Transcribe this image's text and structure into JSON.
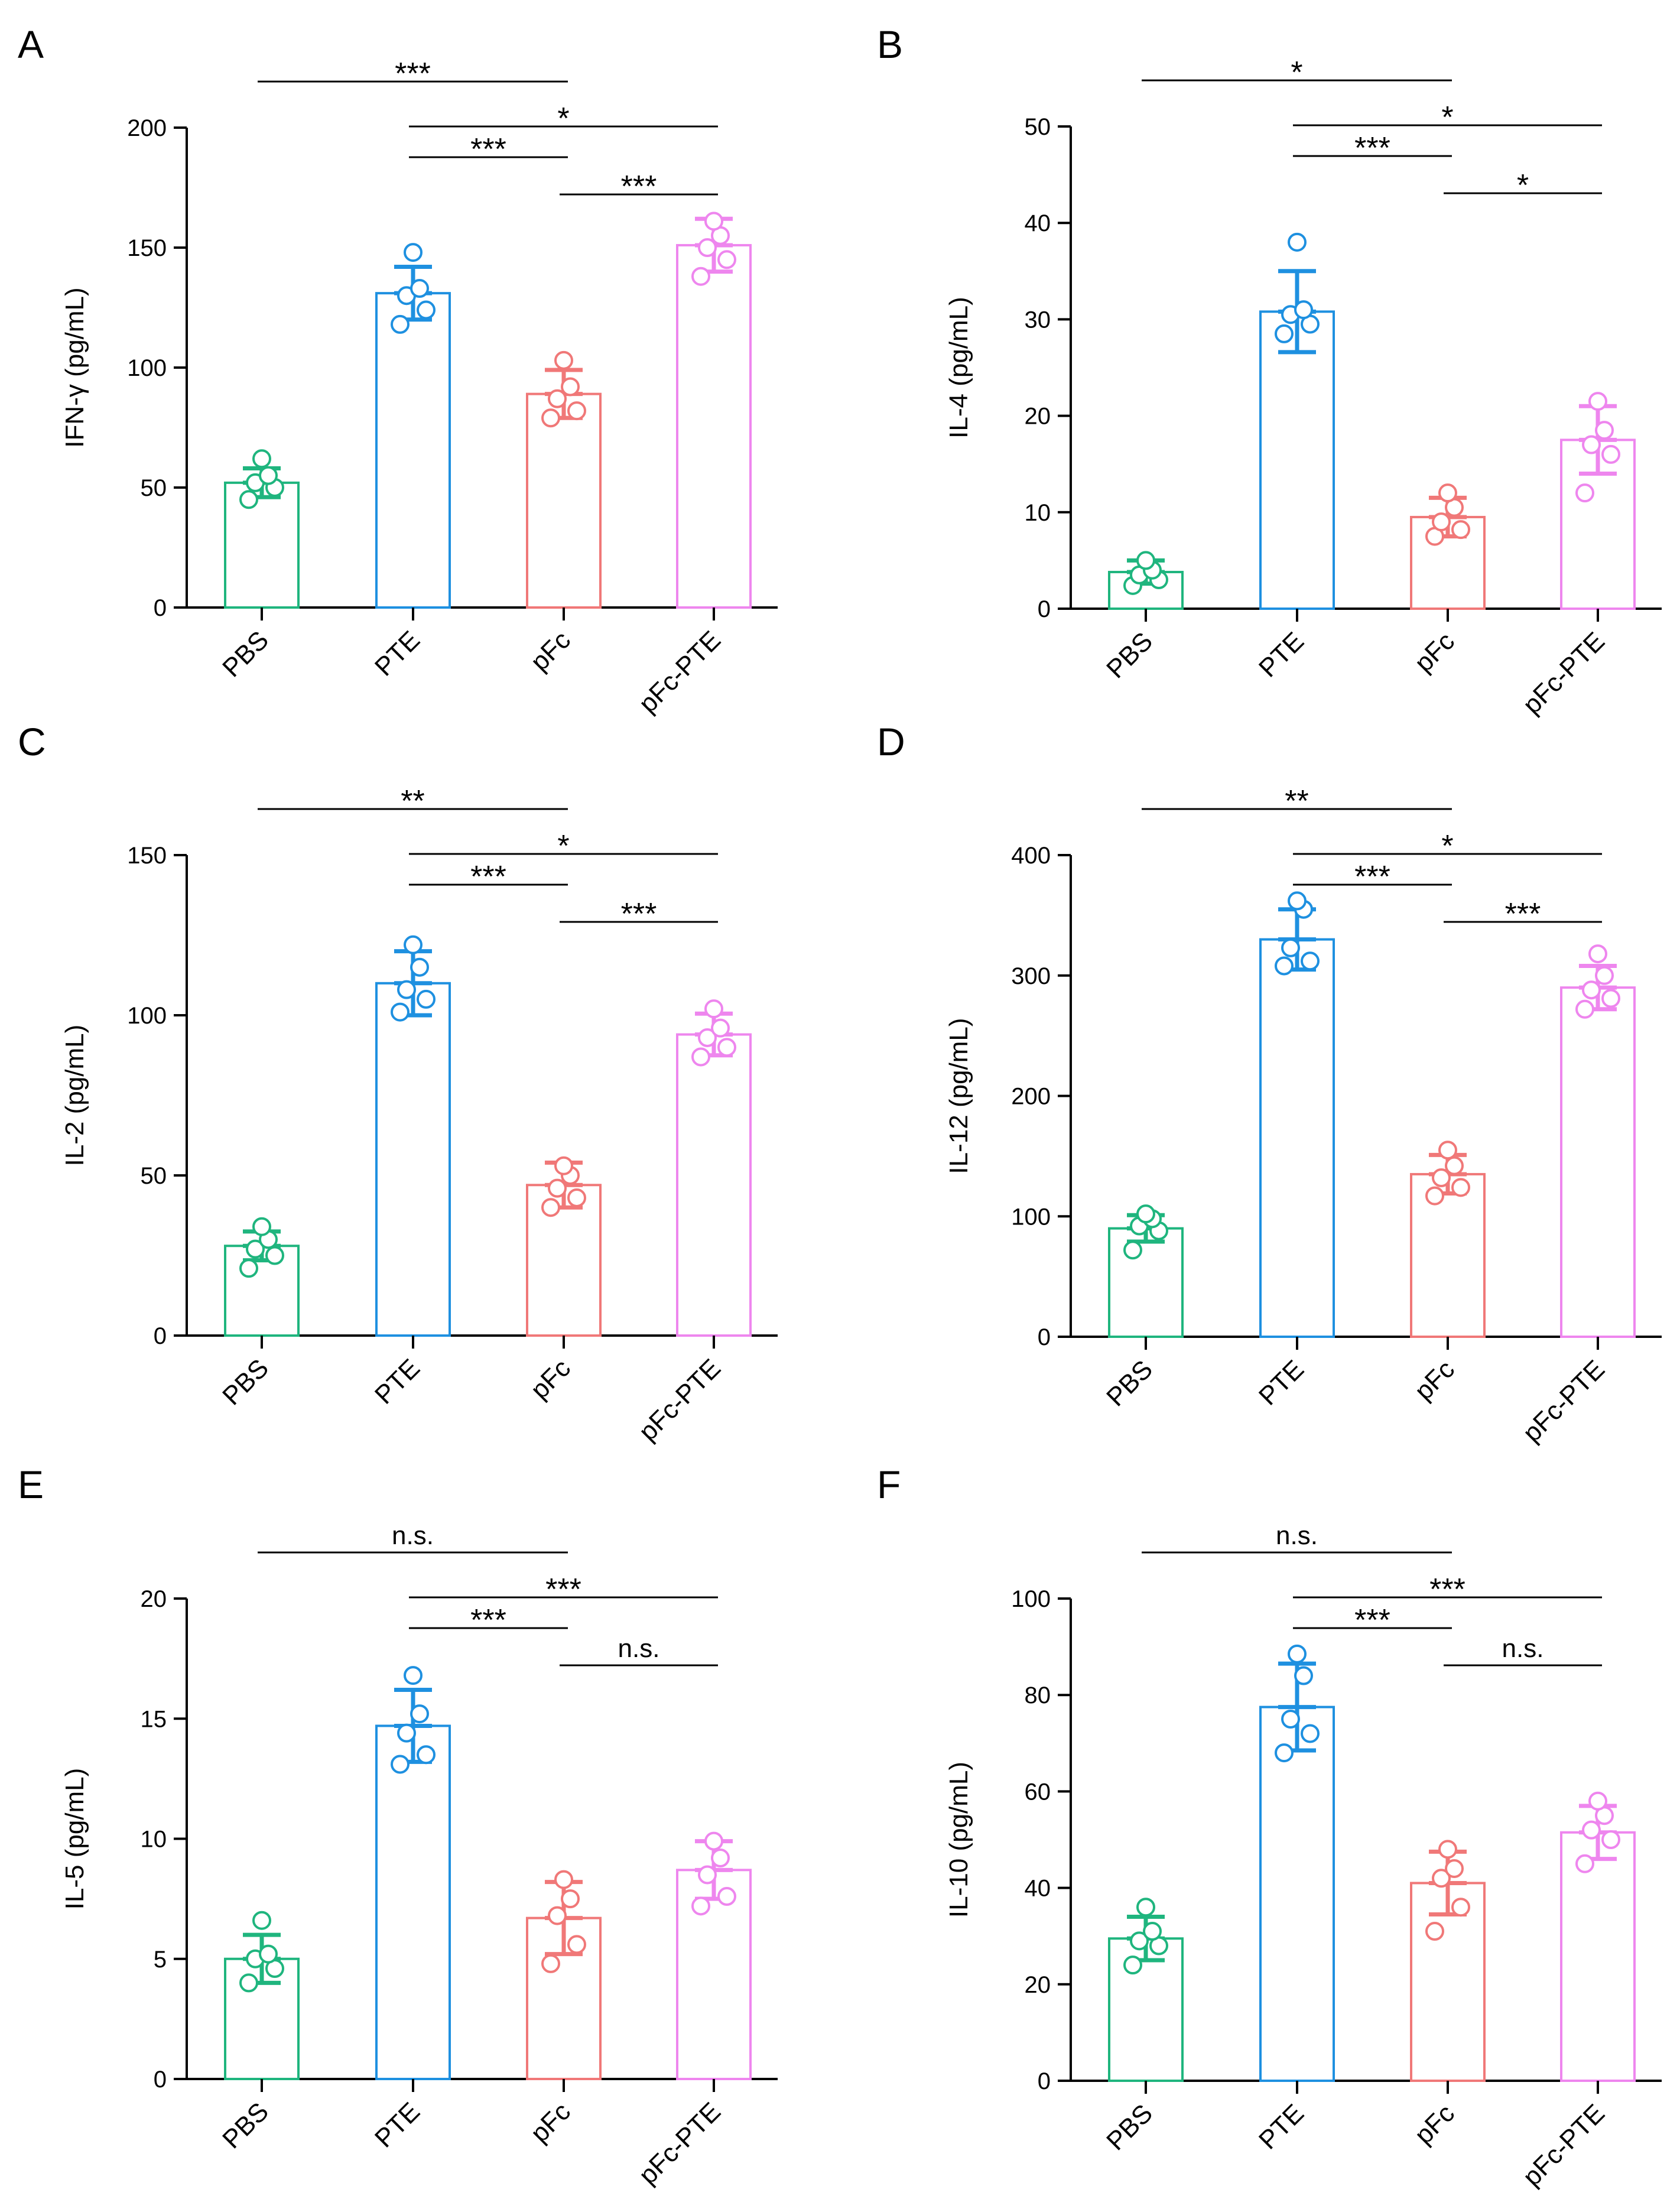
{
  "chart_data": [
    {
      "panel": "A",
      "type": "bar",
      "ylabel": "IFN-γ (pg/mL)",
      "ylim": [
        0,
        200
      ],
      "yticks": [
        0,
        50,
        100,
        150,
        200
      ],
      "categories": [
        "PBS",
        "PTE",
        "pFc",
        "pFc-PTE"
      ],
      "values": [
        52,
        131,
        89,
        151
      ],
      "errors": [
        6,
        11,
        10,
        11
      ],
      "points": [
        [
          45,
          50,
          52,
          55,
          62
        ],
        [
          118,
          124,
          130,
          133,
          148
        ],
        [
          79,
          82,
          87,
          92,
          103
        ],
        [
          138,
          145,
          150,
          155,
          161
        ]
      ],
      "significance": [
        {
          "from": 0,
          "to": 2,
          "label": "***"
        },
        {
          "from": 1,
          "to": 3,
          "label": "*"
        },
        {
          "from": 1,
          "to": 2,
          "label": "***"
        },
        {
          "from": 2,
          "to": 3,
          "label": "***"
        }
      ]
    },
    {
      "panel": "B",
      "type": "bar",
      "ylabel": "IL-4 (pg/mL)",
      "ylim": [
        0,
        50
      ],
      "yticks": [
        0,
        10,
        20,
        30,
        40,
        50
      ],
      "categories": [
        "PBS",
        "PTE",
        "pFc",
        "pFc-PTE"
      ],
      "values": [
        3.8,
        30.8,
        9.5,
        17.5
      ],
      "errors": [
        1.2,
        4.2,
        2.0,
        3.5
      ],
      "points": [
        [
          2.4,
          3.0,
          3.5,
          4.0,
          5.0
        ],
        [
          28.5,
          29.5,
          30.5,
          31.0,
          38.0
        ],
        [
          7.5,
          8.2,
          9.0,
          10.5,
          12.0
        ],
        [
          12.0,
          16.0,
          17.0,
          18.5,
          21.5
        ]
      ],
      "significance": [
        {
          "from": 0,
          "to": 2,
          "label": "*"
        },
        {
          "from": 1,
          "to": 3,
          "label": "*"
        },
        {
          "from": 1,
          "to": 2,
          "label": "***"
        },
        {
          "from": 2,
          "to": 3,
          "label": "*"
        }
      ]
    },
    {
      "panel": "C",
      "type": "bar",
      "ylabel": "IL-2 (pg/mL)",
      "ylim": [
        0,
        150
      ],
      "yticks": [
        0,
        50,
        100,
        150
      ],
      "categories": [
        "PBS",
        "PTE",
        "pFc",
        "pFc-PTE"
      ],
      "values": [
        28,
        110,
        47,
        94
      ],
      "errors": [
        4.5,
        10,
        7,
        6.5
      ],
      "points": [
        [
          21,
          25,
          27,
          30,
          34
        ],
        [
          101,
          105,
          108,
          115,
          122
        ],
        [
          40,
          43,
          46,
          50,
          53
        ],
        [
          87,
          90,
          93,
          96,
          102
        ]
      ],
      "significance": [
        {
          "from": 0,
          "to": 2,
          "label": "**"
        },
        {
          "from": 1,
          "to": 3,
          "label": "*"
        },
        {
          "from": 1,
          "to": 2,
          "label": "***"
        },
        {
          "from": 2,
          "to": 3,
          "label": "***"
        }
      ]
    },
    {
      "panel": "D",
      "type": "bar",
      "ylabel": "IL-12 (pg/mL)",
      "ylim": [
        0,
        400
      ],
      "yticks": [
        0,
        100,
        200,
        300,
        400
      ],
      "categories": [
        "PBS",
        "PTE",
        "pFc",
        "pFc-PTE"
      ],
      "values": [
        90,
        330,
        135,
        290
      ],
      "errors": [
        11,
        25,
        16,
        18
      ],
      "points": [
        [
          72,
          88,
          92,
          98,
          102
        ],
        [
          308,
          312,
          323,
          355,
          362
        ],
        [
          117,
          124,
          132,
          142,
          155
        ],
        [
          272,
          281,
          288,
          300,
          318
        ]
      ],
      "significance": [
        {
          "from": 0,
          "to": 2,
          "label": "**"
        },
        {
          "from": 1,
          "to": 3,
          "label": "*"
        },
        {
          "from": 1,
          "to": 2,
          "label": "***"
        },
        {
          "from": 2,
          "to": 3,
          "label": "***"
        }
      ]
    },
    {
      "panel": "E",
      "type": "bar",
      "ylabel": "IL-5 (pg/mL)",
      "ylim": [
        0,
        20
      ],
      "yticks": [
        0,
        5,
        10,
        15,
        20
      ],
      "categories": [
        "PBS",
        "PTE",
        "pFc",
        "pFc-PTE"
      ],
      "values": [
        5.0,
        14.7,
        6.7,
        8.7
      ],
      "errors": [
        1.0,
        1.5,
        1.5,
        1.2
      ],
      "points": [
        [
          4.0,
          4.6,
          5.0,
          5.2,
          6.6
        ],
        [
          13.1,
          13.5,
          14.4,
          15.2,
          16.8
        ],
        [
          4.8,
          5.6,
          6.8,
          7.5,
          8.3
        ],
        [
          7.2,
          7.6,
          8.5,
          9.2,
          9.9
        ]
      ],
      "significance": [
        {
          "from": 0,
          "to": 2,
          "label": "n.s."
        },
        {
          "from": 1,
          "to": 3,
          "label": "***"
        },
        {
          "from": 1,
          "to": 2,
          "label": "***"
        },
        {
          "from": 2,
          "to": 3,
          "label": "n.s."
        }
      ]
    },
    {
      "panel": "F",
      "type": "bar",
      "ylabel": "IL-10 (pg/mL)",
      "ylim": [
        0,
        100
      ],
      "yticks": [
        0,
        20,
        40,
        60,
        80,
        100
      ],
      "categories": [
        "PBS",
        "PTE",
        "pFc",
        "pFc-PTE"
      ],
      "values": [
        29.5,
        77.5,
        41,
        51.5
      ],
      "errors": [
        4.5,
        9,
        6.5,
        5.5
      ],
      "points": [
        [
          24,
          28,
          29,
          31,
          36
        ],
        [
          68,
          72,
          75,
          84,
          88.5
        ],
        [
          31,
          36,
          42,
          44,
          48
        ],
        [
          45,
          50,
          52,
          55,
          58
        ]
      ],
      "significance": [
        {
          "from": 0,
          "to": 2,
          "label": "n.s."
        },
        {
          "from": 1,
          "to": 3,
          "label": "***"
        },
        {
          "from": 1,
          "to": 2,
          "label": "***"
        },
        {
          "from": 2,
          "to": 3,
          "label": "n.s."
        }
      ]
    }
  ],
  "colors": {
    "series": [
      "#1fb57e",
      "#1e90e0",
      "#f07878",
      "#ee86ee"
    ],
    "axis": "#000000"
  }
}
